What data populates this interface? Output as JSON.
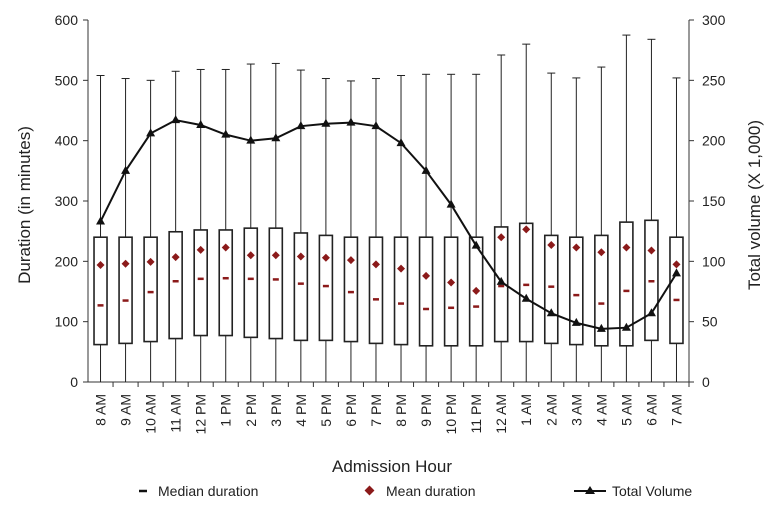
{
  "chart_data": {
    "type": "box",
    "categories": [
      "8 AM",
      "9 AM",
      "10 AM",
      "11 AM",
      "12 PM",
      "1 PM",
      "2 PM",
      "3 PM",
      "4 PM",
      "5 PM",
      "6 PM",
      "7 PM",
      "8 PM",
      "9 PM",
      "10 PM",
      "11 PM",
      "12 AM",
      "1 AM",
      "2 AM",
      "3 AM",
      "4 AM",
      "5 AM",
      "6 AM",
      "7 AM"
    ],
    "xlabel": "Admission Hour",
    "ylabel_left": "Duration (in minutes)",
    "ylabel_right": "Total volume (X 1,000)",
    "ylim_left": [
      0,
      600
    ],
    "ylim_right": [
      0,
      300
    ],
    "yticks_left": [
      "0",
      "100",
      "200",
      "300",
      "400",
      "500",
      "600"
    ],
    "yticks_right": [
      "0",
      "50",
      "100",
      "150",
      "200",
      "250",
      "300"
    ],
    "box": {
      "whisker_low": [
        0,
        0,
        0,
        0,
        0,
        0,
        0,
        0,
        0,
        0,
        0,
        0,
        0,
        0,
        0,
        0,
        0,
        0,
        0,
        0,
        0,
        0,
        0,
        0
      ],
      "q1": [
        62,
        64,
        67,
        72,
        77,
        77,
        74,
        72,
        69,
        69,
        67,
        64,
        62,
        60,
        60,
        60,
        67,
        67,
        64,
        62,
        60,
        60,
        69,
        64
      ],
      "q3": [
        240,
        240,
        240,
        249,
        252,
        252,
        255,
        255,
        247,
        243,
        240,
        240,
        240,
        240,
        240,
        240,
        257,
        263,
        243,
        240,
        243,
        265,
        268,
        240
      ],
      "whisker_high": [
        508,
        503,
        500,
        515,
        518,
        518,
        527,
        528,
        517,
        503,
        499,
        503,
        508,
        510,
        510,
        510,
        542,
        560,
        512,
        504,
        522,
        575,
        568,
        504
      ]
    },
    "median_duration": [
      127,
      135,
      149,
      167,
      171,
      172,
      171,
      170,
      163,
      159,
      149,
      137,
      130,
      121,
      123,
      125,
      159,
      161,
      158,
      144,
      130,
      151,
      167,
      136
    ],
    "mean_duration": [
      194,
      196,
      199,
      207,
      219,
      223,
      210,
      210,
      208,
      206,
      202,
      195,
      188,
      176,
      165,
      151,
      240,
      253,
      227,
      223,
      215,
      223,
      218,
      195
    ],
    "total_volume": [
      133,
      175,
      206,
      217,
      213,
      205,
      200,
      202,
      212,
      214,
      215,
      212,
      198,
      175,
      147,
      113,
      83,
      69,
      57,
      49,
      44,
      45,
      57,
      90
    ],
    "legend": [
      "Median duration",
      "Mean duration",
      "Total Volume"
    ],
    "colors": {
      "line": "#111111",
      "box": "#222222",
      "mean_marker": "#8b1a1a",
      "median_marker": "#8b1a1a"
    },
    "grid": false,
    "legend_position": "bottom"
  }
}
